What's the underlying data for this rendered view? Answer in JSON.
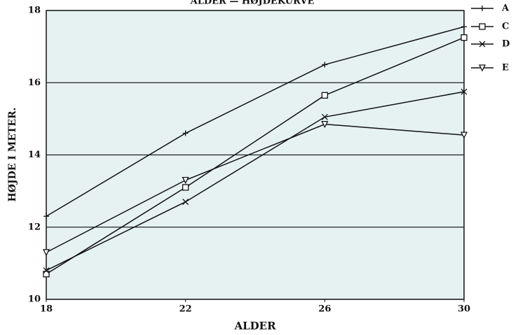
{
  "chart_data": {
    "type": "line",
    "title": "ALDER — HØJDEKURVE",
    "x_label": "ALDER",
    "y_label": "HØJDE I METER.",
    "x": [
      18,
      22,
      26,
      30
    ],
    "xlim": [
      18,
      30
    ],
    "xticks": [
      18,
      22,
      26,
      30
    ],
    "ylim": [
      10,
      18
    ],
    "yticks": [
      10,
      12,
      14,
      16,
      18
    ],
    "grid": true,
    "legend": "right",
    "series": [
      {
        "name": "A",
        "marker": "plus",
        "color": "#111111",
        "values": [
          12.3,
          14.6,
          16.5,
          17.55
        ]
      },
      {
        "name": "C",
        "marker": "square",
        "color": "#111111",
        "values": [
          10.7,
          13.1,
          15.65,
          17.25
        ]
      },
      {
        "name": "D",
        "marker": "x",
        "color": "#111111",
        "values": [
          10.8,
          12.7,
          15.05,
          15.75
        ]
      },
      {
        "name": "E",
        "marker": "triangle-down",
        "color": "#111111",
        "values": [
          11.3,
          13.3,
          14.85,
          14.55
        ]
      }
    ]
  }
}
